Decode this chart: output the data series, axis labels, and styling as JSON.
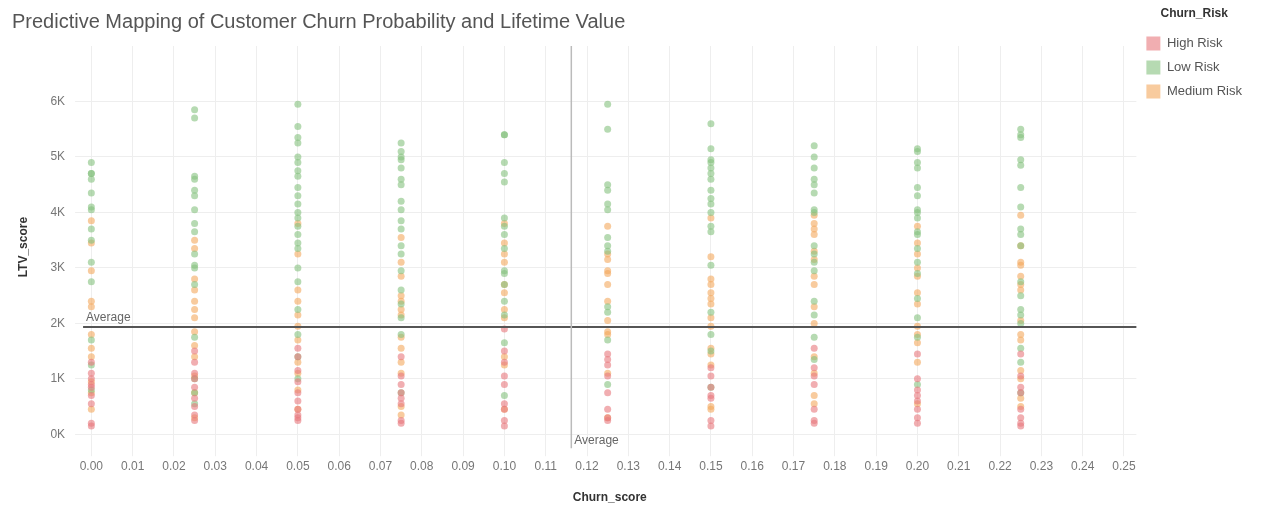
{
  "chart_data": {
    "type": "scatter",
    "title": "Predictive Mapping of Customer Churn Probability and Lifetime Value",
    "xlabel": "Churn_score",
    "ylabel": "LTV_score",
    "legend_title": "Churn_Risk",
    "legend": "top right",
    "grid": true,
    "marker": "circle",
    "xlim": [
      -0.002,
      0.253
    ],
    "ylim": [
      -250,
      7000
    ],
    "xticks": [
      {
        "value": 0,
        "label": "0.00"
      },
      {
        "value": 0.01,
        "label": "0.01"
      },
      {
        "value": 0.02,
        "label": "0.02"
      },
      {
        "value": 0.03,
        "label": "0.03"
      },
      {
        "value": 0.04,
        "label": "0.04"
      },
      {
        "value": 0.05,
        "label": "0.05"
      },
      {
        "value": 0.06,
        "label": "0.06"
      },
      {
        "value": 0.07,
        "label": "0.07"
      },
      {
        "value": 0.08,
        "label": "0.08"
      },
      {
        "value": 0.09,
        "label": "0.09"
      },
      {
        "value": 0.1,
        "label": "0.10"
      },
      {
        "value": 0.11,
        "label": "0.11"
      },
      {
        "value": 0.12,
        "label": "0.12"
      },
      {
        "value": 0.13,
        "label": "0.13"
      },
      {
        "value": 0.14,
        "label": "0.14"
      },
      {
        "value": 0.15,
        "label": "0.15"
      },
      {
        "value": 0.16,
        "label": "0.16"
      },
      {
        "value": 0.17,
        "label": "0.17"
      },
      {
        "value": 0.18,
        "label": "0.18"
      },
      {
        "value": 0.19,
        "label": "0.19"
      },
      {
        "value": 0.2,
        "label": "0.20"
      },
      {
        "value": 0.21,
        "label": "0.21"
      },
      {
        "value": 0.22,
        "label": "0.22"
      },
      {
        "value": 0.23,
        "label": "0.23"
      },
      {
        "value": 0.24,
        "label": "0.24"
      },
      {
        "value": 0.25,
        "label": "0.25"
      }
    ],
    "yticks": [
      {
        "value": 0,
        "label": "0K"
      },
      {
        "value": 1000,
        "label": "1K"
      },
      {
        "value": 2000,
        "label": "2K"
      },
      {
        "value": 3000,
        "label": "3K"
      },
      {
        "value": 4000,
        "label": "4K"
      },
      {
        "value": 5000,
        "label": "5K"
      },
      {
        "value": 6000,
        "label": "6K"
      }
    ],
    "ref_lines": [
      {
        "axis": "y",
        "value": 1935,
        "label": "Average",
        "color": "#555555"
      },
      {
        "axis": "x",
        "value": 0.1162,
        "label": "Average",
        "color": "#bbbbbb"
      }
    ],
    "series": [
      {
        "name": "High Risk",
        "color": "#e8787d",
        "x": [
          0,
          0,
          0,
          0,
          0,
          0,
          0,
          0,
          0,
          0.025,
          0.025,
          0.025,
          0.025,
          0.025,
          0.025,
          0.025,
          0.025,
          0.025,
          0.05,
          0.05,
          0.05,
          0.05,
          0.05,
          0.05,
          0.05,
          0.05,
          0.05,
          0.05,
          0.075,
          0.075,
          0.075,
          0.075,
          0.075,
          0.075,
          0.075,
          0.075,
          0.1,
          0.1,
          0.1,
          0.1,
          0.1,
          0.1,
          0.1,
          0.1,
          0.1,
          0.125,
          0.125,
          0.125,
          0.125,
          0.125,
          0.125,
          0.125,
          0.125,
          0.15,
          0.15,
          0.15,
          0.15,
          0.15,
          0.15,
          0.15,
          0.175,
          0.175,
          0.175,
          0.175,
          0.175,
          0.175,
          0.175,
          0.2,
          0.2,
          0.2,
          0.2,
          0.2,
          0.2,
          0.2,
          0.2,
          0.225,
          0.225,
          0.225,
          0.225,
          0.225,
          0.225,
          0.225,
          0.225
        ],
        "values": [
          1300,
          1100,
          1000,
          850,
          550,
          200,
          150,
          900,
          700,
          1500,
          1300,
          1100,
          1000,
          650,
          500,
          350,
          250,
          850,
          1400,
          1150,
          950,
          750,
          600,
          450,
          350,
          250,
          300,
          1550,
          1400,
          1050,
          900,
          750,
          650,
          550,
          250,
          200,
          1900,
          1500,
          1300,
          1050,
          900,
          550,
          450,
          250,
          150,
          1450,
          1350,
          1250,
          1050,
          750,
          450,
          250,
          300,
          1200,
          1050,
          850,
          700,
          650,
          250,
          150,
          1550,
          1200,
          1050,
          900,
          450,
          250,
          200,
          1450,
          1000,
          800,
          700,
          600,
          450,
          300,
          200,
          1450,
          1050,
          750,
          450,
          300,
          200,
          150,
          850
        ]
      },
      {
        "name": "Low Risk",
        "color": "#86c27f",
        "x": [
          0,
          0,
          0,
          0,
          0,
          0,
          0,
          0,
          0,
          0,
          0,
          0,
          0,
          0,
          0.025,
          0.025,
          0.025,
          0.025,
          0.025,
          0.025,
          0.025,
          0.025,
          0.025,
          0.025,
          0.025,
          0.025,
          0.025,
          0.025,
          0.025,
          0.025,
          0.025,
          0.05,
          0.05,
          0.05,
          0.05,
          0.05,
          0.05,
          0.05,
          0.05,
          0.05,
          0.05,
          0.05,
          0.05,
          0.05,
          0.05,
          0.05,
          0.05,
          0.05,
          0.05,
          0.05,
          0.05,
          0.05,
          0.05,
          0.05,
          0.075,
          0.075,
          0.075,
          0.075,
          0.075,
          0.075,
          0.075,
          0.075,
          0.075,
          0.075,
          0.075,
          0.075,
          0.075,
          0.075,
          0.075,
          0.075,
          0.075,
          0.075,
          0.075,
          0.1,
          0.1,
          0.1,
          0.1,
          0.1,
          0.1,
          0.1,
          0.1,
          0.1,
          0.1,
          0.1,
          0.1,
          0.1,
          0.1,
          0.1,
          0.1,
          0.125,
          0.125,
          0.125,
          0.125,
          0.125,
          0.125,
          0.125,
          0.125,
          0.125,
          0.125,
          0.125,
          0.125,
          0.125,
          0.15,
          0.15,
          0.15,
          0.15,
          0.15,
          0.15,
          0.15,
          0.15,
          0.15,
          0.15,
          0.15,
          0.15,
          0.15,
          0.15,
          0.15,
          0.15,
          0.15,
          0.15,
          0.175,
          0.175,
          0.175,
          0.175,
          0.175,
          0.175,
          0.175,
          0.175,
          0.175,
          0.175,
          0.175,
          0.175,
          0.175,
          0.175,
          0.175,
          0.175,
          0.2,
          0.2,
          0.2,
          0.2,
          0.2,
          0.2,
          0.2,
          0.2,
          0.2,
          0.2,
          0.2,
          0.2,
          0.2,
          0.2,
          0.2,
          0.2,
          0.2,
          0.2,
          0.225,
          0.225,
          0.225,
          0.225,
          0.225,
          0.225,
          0.225,
          0.225,
          0.225,
          0.225,
          0.225,
          0.225,
          0.225,
          0.225,
          0.225,
          0.225,
          0.225,
          0.225
        ],
        "values": [
          4900,
          4700,
          4700,
          4600,
          4350,
          4100,
          4050,
          3700,
          3500,
          3100,
          2750,
          1700,
          1250,
          800,
          5850,
          5700,
          4650,
          4600,
          4400,
          4300,
          4050,
          3800,
          3650,
          3250,
          3050,
          3000,
          2700,
          1750,
          1000,
          750,
          550,
          5950,
          5550,
          5350,
          5250,
          5000,
          4900,
          4750,
          4650,
          4450,
          4300,
          4150,
          4000,
          3900,
          3750,
          3600,
          3450,
          3350,
          3000,
          2750,
          2250,
          1800,
          1400,
          1000,
          5250,
          5100,
          5000,
          4950,
          4800,
          4600,
          4500,
          4200,
          4050,
          3850,
          3700,
          3400,
          3250,
          2950,
          2600,
          2350,
          2100,
          1800,
          750,
          5400,
          5400,
          4900,
          4700,
          4550,
          3900,
          3750,
          3600,
          3350,
          2950,
          2900,
          2700,
          2400,
          2150,
          1650,
          700,
          5950,
          5500,
          4500,
          4400,
          4150,
          4050,
          3550,
          3400,
          3300,
          2300,
          2200,
          1700,
          900,
          5600,
          5150,
          4950,
          4900,
          4800,
          4700,
          4600,
          4400,
          4250,
          4150,
          4000,
          3750,
          3650,
          3050,
          2200,
          1800,
          1500,
          850,
          5200,
          5000,
          4800,
          4600,
          4500,
          4350,
          4050,
          4000,
          3400,
          3250,
          3100,
          2950,
          2400,
          2150,
          1750,
          1350,
          5150,
          5100,
          4900,
          4800,
          4450,
          4300,
          4050,
          4000,
          3900,
          3650,
          3600,
          3350,
          3100,
          2900,
          2450,
          2100,
          1750,
          900,
          5500,
          5400,
          5350,
          4950,
          4850,
          4450,
          4100,
          3700,
          3600,
          3400,
          2750,
          2500,
          2250,
          2150,
          2000,
          1550,
          1300,
          750
        ]
      },
      {
        "name": "Medium Risk",
        "color": "#f4a95e",
        "x": [
          0,
          0,
          0,
          0,
          0,
          0,
          0,
          0,
          0,
          0,
          0,
          0.025,
          0.025,
          0.025,
          0.025,
          0.025,
          0.025,
          0.025,
          0.025,
          0.025,
          0.025,
          0.025,
          0.025,
          0.025,
          0.05,
          0.05,
          0.05,
          0.05,
          0.05,
          0.05,
          0.05,
          0.05,
          0.05,
          0.05,
          0.05,
          0.075,
          0.075,
          0.075,
          0.075,
          0.075,
          0.075,
          0.075,
          0.075,
          0.075,
          0.075,
          0.075,
          0.075,
          0.075,
          0.1,
          0.1,
          0.1,
          0.1,
          0.1,
          0.1,
          0.1,
          0.1,
          0.1,
          0.1,
          0.1,
          0.125,
          0.125,
          0.125,
          0.125,
          0.125,
          0.125,
          0.125,
          0.125,
          0.125,
          0.125,
          0.125,
          0.125,
          0.15,
          0.15,
          0.15,
          0.15,
          0.15,
          0.15,
          0.15,
          0.15,
          0.15,
          0.15,
          0.15,
          0.15,
          0.15,
          0.15,
          0.175,
          0.175,
          0.175,
          0.175,
          0.175,
          0.175,
          0.175,
          0.175,
          0.175,
          0.175,
          0.175,
          0.175,
          0.175,
          0.175,
          0.2,
          0.2,
          0.2,
          0.2,
          0.2,
          0.2,
          0.2,
          0.2,
          0.2,
          0.2,
          0.2,
          0.2,
          0.225,
          0.225,
          0.225,
          0.225,
          0.225,
          0.225,
          0.225,
          0.225,
          0.225,
          0.225,
          0.225,
          0.225,
          0.225,
          0.225
        ],
        "values": [
          3850,
          3450,
          2950,
          2400,
          2300,
          1800,
          1550,
          1400,
          950,
          750,
          450,
          3500,
          3350,
          2800,
          2600,
          2400,
          2250,
          2100,
          1850,
          1600,
          1400,
          1050,
          750,
          300,
          3800,
          3250,
          2600,
          2400,
          2150,
          1950,
          1700,
          1300,
          1100,
          800,
          450,
          3550,
          3100,
          2850,
          2500,
          2400,
          2250,
          2150,
          1750,
          1550,
          1300,
          1100,
          500,
          350,
          3800,
          3450,
          3250,
          3100,
          2700,
          2550,
          2250,
          2100,
          1400,
          1250,
          450,
          3750,
          3250,
          3150,
          2950,
          2900,
          2700,
          2400,
          2050,
          1850,
          1800,
          1100,
          300,
          3900,
          3200,
          2800,
          2700,
          2550,
          2450,
          2350,
          2100,
          1950,
          1550,
          1450,
          1250,
          500,
          450,
          3950,
          3800,
          3700,
          3600,
          3300,
          3150,
          2850,
          2700,
          2300,
          2000,
          1400,
          1100,
          700,
          550,
          3750,
          3450,
          3250,
          3000,
          2850,
          2550,
          2350,
          1950,
          1800,
          1650,
          1300,
          550,
          3950,
          3400,
          3100,
          3050,
          2850,
          2700,
          2600,
          2050,
          1800,
          1700,
          1150,
          1000,
          650,
          500
        ]
      }
    ]
  }
}
